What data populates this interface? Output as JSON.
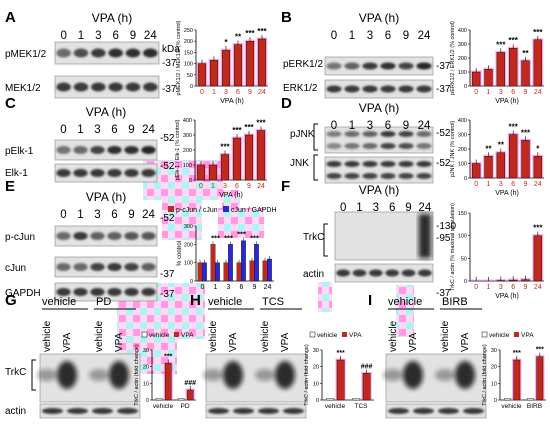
{
  "figure": {
    "panel_labels": [
      "A",
      "B",
      "C",
      "D",
      "E",
      "F",
      "G",
      "H",
      "I"
    ],
    "time_title": "VPA (h)",
    "time_points": [
      "0",
      "1",
      "3",
      "6",
      "9",
      "24"
    ],
    "kda_label": "kDa",
    "bar_x_ticks": [
      "0",
      "1",
      "3",
      "6",
      "9",
      "24"
    ],
    "x_axis_label": "VPA (h)",
    "gel_labels": {
      "A": [
        "pMEK1/2",
        "MEK1/2"
      ],
      "B": [
        "pERK1/2",
        "ERK1/2"
      ],
      "C": [
        "pElk-1",
        "Elk-1"
      ],
      "D": [
        "pJNK",
        "JNK"
      ],
      "E": [
        "p-cJun",
        "cJun",
        "GAPDH"
      ],
      "F": [
        "TrkC",
        "actin"
      ],
      "G": [
        "TrkC",
        "actin"
      ],
      "H": [],
      "I": []
    },
    "mw_markers": {
      "A": [
        "-37",
        "-37"
      ],
      "B": [
        "-37",
        "-37"
      ],
      "C": [
        "-52",
        "-52"
      ],
      "D": [
        "-52",
        "-52"
      ],
      "E": [
        "-52",
        "-37",
        "-37"
      ],
      "F": [
        "-130",
        "-95",
        "-37"
      ]
    },
    "treatment_groups": {
      "G": [
        "vehicle",
        "PD"
      ],
      "H": [
        "vehicle",
        "TCS"
      ],
      "I": [
        "vehicle",
        "BIRB"
      ]
    },
    "lane_labels": [
      "vehicle",
      "VPA"
    ],
    "legend_vehicle_vpa": [
      "vehicle",
      "VPA"
    ],
    "legend_E": [
      "p-cJun / cJun",
      "cJun / GAPDH"
    ],
    "colors": {
      "vpa_bar": "#c0291d",
      "cjun_bar": "#2a2ad0",
      "vehicle_bar": "#ffffff",
      "highlight": "#ff66cc",
      "gel_bg": "#e2e2e2",
      "band": "#1a1a1a"
    }
  },
  "chart_data": [
    {
      "panel": "A",
      "type": "bar",
      "categories": [
        "0",
        "1",
        "3",
        "6",
        "9",
        "24"
      ],
      "values": [
        100,
        115,
        160,
        185,
        200,
        210
      ],
      "stars": [
        "",
        "",
        "*",
        "**",
        "***",
        "***"
      ],
      "ylabel": "pMEK1/2 / MEK1/2 (% control)",
      "xlabel": "VPA (h)",
      "ylim": [
        0,
        250
      ],
      "yticks": [
        0,
        50,
        100,
        150,
        200,
        250
      ]
    },
    {
      "panel": "B",
      "type": "bar",
      "categories": [
        "0",
        "1",
        "3",
        "6",
        "9",
        "24"
      ],
      "values": [
        100,
        120,
        240,
        270,
        180,
        330
      ],
      "stars": [
        "",
        "",
        "***",
        "***",
        "**",
        "***"
      ],
      "ylabel": "pERK1/2 / ERK1/2 (% control)",
      "xlabel": "VPA (h)",
      "ylim": [
        0,
        400
      ],
      "yticks": [
        0,
        100,
        200,
        300,
        400
      ]
    },
    {
      "panel": "C",
      "type": "bar",
      "categories": [
        "0",
        "1",
        "3",
        "6",
        "9",
        "24"
      ],
      "values": [
        100,
        100,
        170,
        280,
        300,
        330
      ],
      "stars": [
        "",
        "",
        "***",
        "***",
        "***",
        "***"
      ],
      "ylabel": "pElk-1 / Elk-1 (% control)",
      "xlabel": "VPA (h)",
      "ylim": [
        0,
        400
      ],
      "yticks": [
        0,
        100,
        200,
        300,
        400
      ]
    },
    {
      "panel": "D",
      "type": "bar",
      "categories": [
        "0",
        "1",
        "3",
        "6",
        "9",
        "24"
      ],
      "values": [
        100,
        150,
        175,
        300,
        260,
        150
      ],
      "stars": [
        "",
        "**",
        "**",
        "***",
        "***",
        "*"
      ],
      "ylabel": "pJNK / JNK (% control)",
      "xlabel": "VPA (h)",
      "ylim": [
        0,
        400
      ],
      "yticks": [
        0,
        100,
        200,
        300,
        400
      ]
    },
    {
      "panel": "E",
      "type": "bar",
      "categories": [
        "0",
        "1",
        "3",
        "6",
        "9",
        "24"
      ],
      "series": [
        {
          "name": "p-cJun / cJun",
          "values": [
            100,
            200,
            100,
            100,
            110,
            110
          ]
        },
        {
          "name": "cJun / GAPDH",
          "values": [
            100,
            100,
            200,
            220,
            200,
            120
          ]
        }
      ],
      "stars": [
        "",
        "***",
        "***",
        "***",
        "***",
        ""
      ],
      "ylabel": "% control",
      "ylim": [
        0,
        300
      ],
      "yticks": [
        0,
        100,
        200,
        300
      ]
    },
    {
      "panel": "F",
      "type": "bar",
      "categories": [
        "0",
        "1",
        "3",
        "6",
        "9",
        "24"
      ],
      "values": [
        0,
        0,
        1,
        2,
        3,
        100
      ],
      "stars": [
        "",
        "",
        "",
        "",
        "",
        "***"
      ],
      "ylabel": "TrkC / actin (% maximal stimulation)",
      "xlabel": "VPA (h)",
      "ylim": [
        0,
        150
      ],
      "yticks": [
        0,
        50,
        100,
        150
      ]
    },
    {
      "panel": "G",
      "type": "bar",
      "categories": [
        "vehicle",
        "PD"
      ],
      "series": [
        {
          "name": "vehicle",
          "values": [
            1,
            1
          ]
        },
        {
          "name": "VPA",
          "values": [
            22,
            6
          ]
        }
      ],
      "stars": [
        "***",
        "###"
      ],
      "ylabel": "TrkC / actin (fold change)",
      "ylim": [
        0,
        30
      ],
      "yticks": [
        0,
        10,
        20,
        30
      ]
    },
    {
      "panel": "H",
      "type": "bar",
      "categories": [
        "vehicle",
        "TCS"
      ],
      "series": [
        {
          "name": "vehicle",
          "values": [
            1,
            1
          ]
        },
        {
          "name": "VPA",
          "values": [
            24,
            16
          ]
        }
      ],
      "stars": [
        "***",
        "###"
      ],
      "ylabel": "TrkC / actin (fold change)",
      "ylim": [
        0,
        30
      ],
      "yticks": [
        0,
        10,
        20,
        30
      ]
    },
    {
      "panel": "I",
      "type": "bar",
      "categories": [
        "vehicle",
        "BIRB"
      ],
      "series": [
        {
          "name": "vehicle",
          "values": [
            1,
            1
          ]
        },
        {
          "name": "VPA",
          "values": [
            24,
            26
          ]
        }
      ],
      "stars": [
        "***",
        "***"
      ],
      "ylabel": "TrkC / actin (fold change)",
      "ylim": [
        0,
        30
      ],
      "yticks": [
        0,
        10,
        20,
        30
      ]
    }
  ]
}
